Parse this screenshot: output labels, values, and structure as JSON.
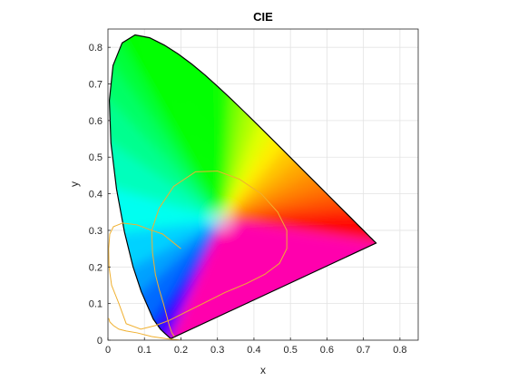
{
  "chart_data": {
    "type": "line",
    "title": "CIE",
    "xlabel": "x",
    "ylabel": "y",
    "xlim": [
      0,
      0.85
    ],
    "ylim": [
      0,
      0.85
    ],
    "grid": true,
    "x_ticks": [
      "0",
      "0.1",
      "0.2",
      "0.3",
      "0.4",
      "0.5",
      "0.6",
      "0.7",
      "0.8"
    ],
    "y_ticks": [
      "0",
      "0.1",
      "0.2",
      "0.3",
      "0.4",
      "0.5",
      "0.6",
      "0.7",
      "0.8"
    ],
    "series": [
      {
        "kind": "spectral locus",
        "color": "#000000",
        "x": [
          0.1741,
          0.1738,
          0.1733,
          0.1726,
          0.1714,
          0.1689,
          0.1644,
          0.1566,
          0.144,
          0.1241,
          0.0913,
          0.0687,
          0.0454,
          0.0235,
          0.0082,
          0.0039,
          0.0139,
          0.0389,
          0.0743,
          0.1142,
          0.1547,
          0.1929,
          0.2296,
          0.2658,
          0.3016,
          0.3373,
          0.3731,
          0.4087,
          0.4441,
          0.4788,
          0.5125,
          0.5448,
          0.5752,
          0.6029,
          0.627,
          0.6482,
          0.6658,
          0.6801,
          0.6915,
          0.7006,
          0.7079,
          0.714,
          0.719,
          0.723,
          0.726,
          0.7283,
          0.73,
          0.7311,
          0.732,
          0.7334,
          0.7347
        ],
        "y": [
          0.005,
          0.0049,
          0.0048,
          0.0048,
          0.0051,
          0.0069,
          0.0109,
          0.0177,
          0.0297,
          0.0578,
          0.1327,
          0.2007,
          0.295,
          0.4127,
          0.5384,
          0.6548,
          0.7502,
          0.812,
          0.8338,
          0.8262,
          0.8059,
          0.7816,
          0.7543,
          0.7243,
          0.6923,
          0.6589,
          0.6245,
          0.5896,
          0.5547,
          0.5202,
          0.4866,
          0.4544,
          0.4242,
          0.3965,
          0.3725,
          0.3514,
          0.334,
          0.3197,
          0.3083,
          0.2993,
          0.292,
          0.2859,
          0.2809,
          0.277,
          0.274,
          0.2717,
          0.27,
          0.2689,
          0.268,
          0.2666,
          0.2653
        ]
      },
      {
        "kind": "gamut curve",
        "color": "#f0b030",
        "x": [
          0.182,
          0.175,
          0.168,
          0.16,
          0.152,
          0.14,
          0.13,
          0.122,
          0.12,
          0.14,
          0.18,
          0.24,
          0.3,
          0.36,
          0.42,
          0.465,
          0.49,
          0.49,
          0.47,
          0.43,
          0.38,
          0.32,
          0.26,
          0.21,
          0.17,
          0.13,
          0.09,
          0.05,
          0.03,
          0.01,
          0.003,
          0.002,
          0.005,
          0.015,
          0.04,
          0.08,
          0.12,
          0.15,
          0.175,
          0.2
        ],
        "y": [
          0.01,
          0.02,
          0.04,
          0.07,
          0.1,
          0.14,
          0.18,
          0.24,
          0.3,
          0.36,
          0.42,
          0.46,
          0.462,
          0.44,
          0.4,
          0.35,
          0.3,
          0.25,
          0.21,
          0.18,
          0.155,
          0.13,
          0.1,
          0.075,
          0.055,
          0.04,
          0.03,
          0.045,
          0.1,
          0.15,
          0.2,
          0.25,
          0.29,
          0.31,
          0.32,
          0.315,
          0.3,
          0.29,
          0.27,
          0.25
        ]
      },
      {
        "kind": "gamut tail",
        "color": "#f0b030",
        "x": [
          0.002,
          0.005,
          0.015,
          0.03,
          0.05,
          0.08,
          0.12,
          0.16,
          0.2
        ],
        "y": [
          0.06,
          0.05,
          0.04,
          0.03,
          0.025,
          0.02,
          0.01,
          0.004,
          0.0
        ]
      }
    ]
  }
}
